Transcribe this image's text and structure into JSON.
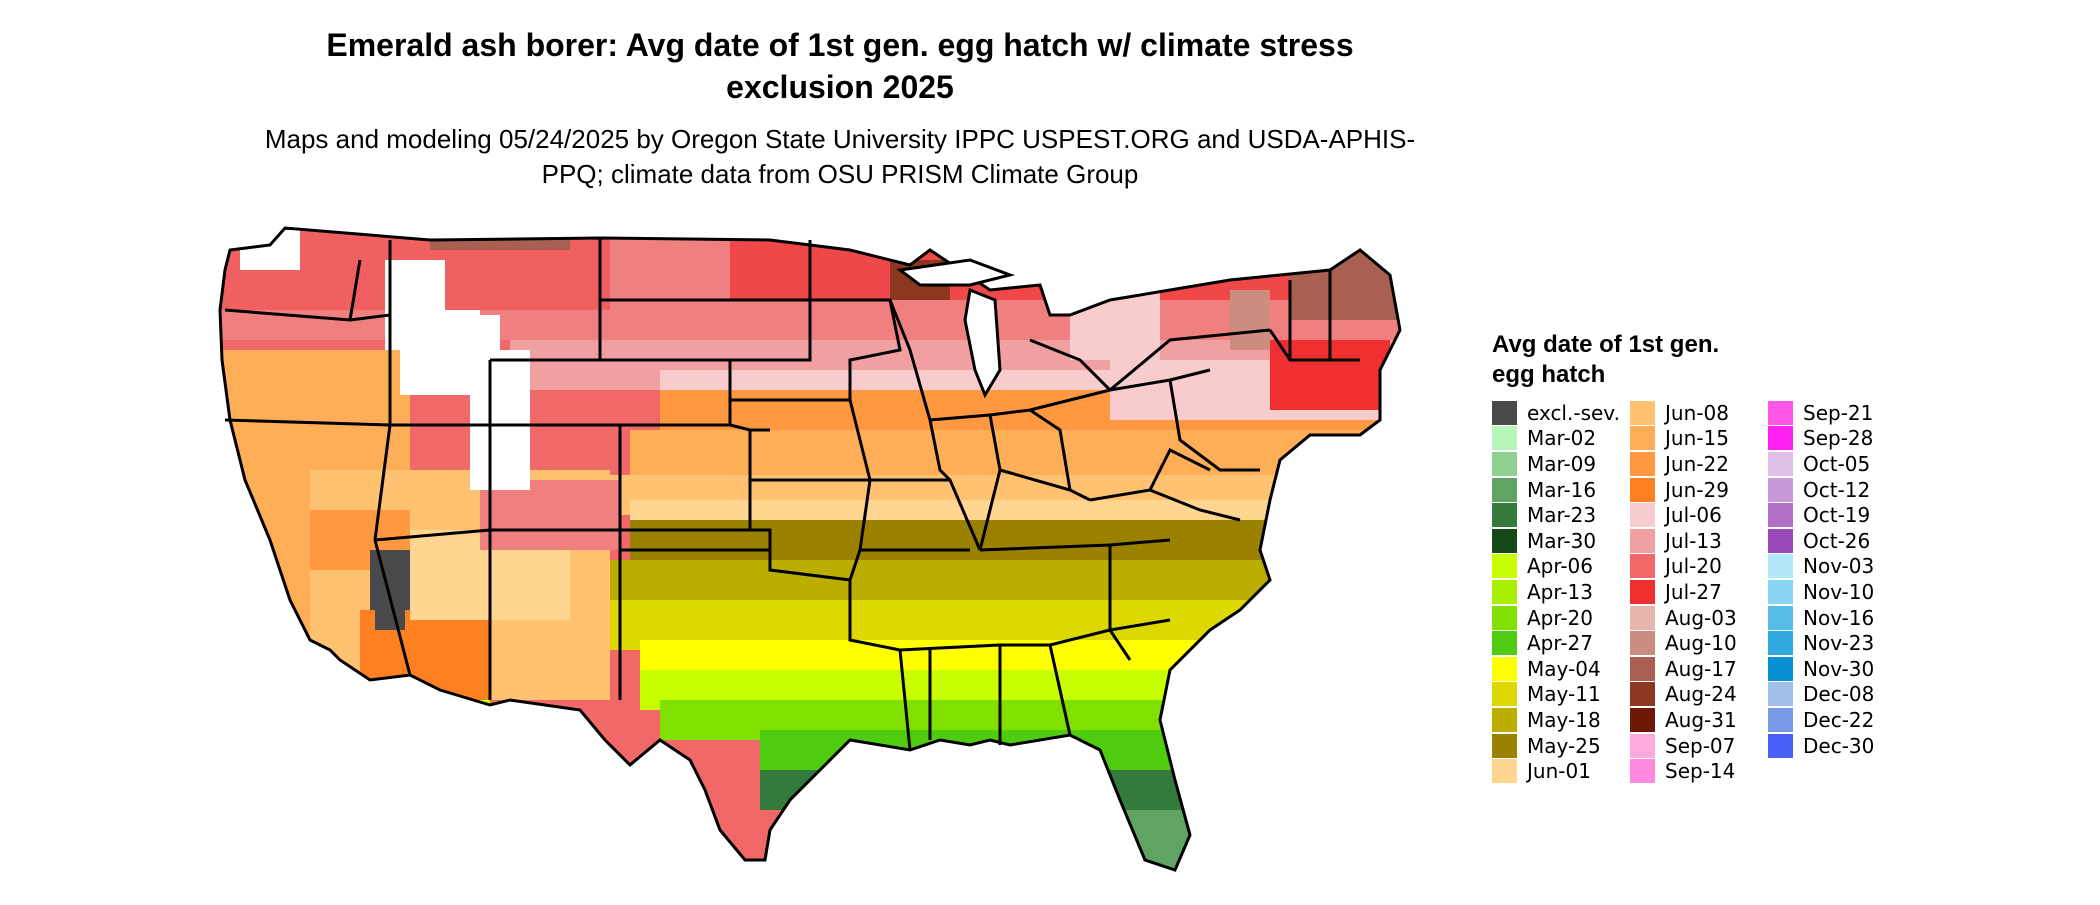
{
  "title": "Emerald ash borer: Avg date of 1st gen. egg hatch w/ climate stress exclusion 2025",
  "subtitle": "Maps and modeling 05/24/2025 by Oregon State University IPPC USPEST.ORG and USDA-APHIS-PPQ; climate data from OSU PRISM Climate Group",
  "legend": {
    "title": "Avg date of 1st gen. egg hatch",
    "items": [
      {
        "label": "excl.-sev.",
        "color": "#4a4a4d"
      },
      {
        "label": "Mar-02",
        "color": "#b8f5b8"
      },
      {
        "label": "Mar-09",
        "color": "#90d090"
      },
      {
        "label": "Mar-16",
        "color": "#5fa463"
      },
      {
        "label": "Mar-23",
        "color": "#347a3a"
      },
      {
        "label": "Mar-30",
        "color": "#154a18"
      },
      {
        "label": "Apr-06",
        "color": "#c8ff00"
      },
      {
        "label": "Apr-13",
        "color": "#a8f000"
      },
      {
        "label": "Apr-20",
        "color": "#80e000"
      },
      {
        "label": "Apr-27",
        "color": "#50cc10"
      },
      {
        "label": "May-04",
        "color": "#ffff00"
      },
      {
        "label": "May-11",
        "color": "#dcd800"
      },
      {
        "label": "May-18",
        "color": "#bcae00"
      },
      {
        "label": "May-25",
        "color": "#9a8200"
      },
      {
        "label": "Jun-01",
        "color": "#ffd690"
      },
      {
        "label": "Jun-08",
        "color": "#ffc270"
      },
      {
        "label": "Jun-15",
        "color": "#ffae58"
      },
      {
        "label": "Jun-22",
        "color": "#ff9840"
      },
      {
        "label": "Jun-29",
        "color": "#ff8020"
      },
      {
        "label": "Jul-06",
        "color": "#f8cccc"
      },
      {
        "label": "Jul-13",
        "color": "#f0a0a0"
      },
      {
        "label": "Jul-20",
        "color": "#f06868"
      },
      {
        "label": "Jul-27",
        "color": "#f03030"
      },
      {
        "label": "Aug-03",
        "color": "#e6b6aa"
      },
      {
        "label": "Aug-10",
        "color": "#cc8c80"
      },
      {
        "label": "Aug-17",
        "color": "#aa6050"
      },
      {
        "label": "Aug-24",
        "color": "#8c3820"
      },
      {
        "label": "Aug-31",
        "color": "#6e1808"
      },
      {
        "label": "Sep-07",
        "color": "#ffaadc"
      },
      {
        "label": "Sep-14",
        "color": "#ff88e0"
      },
      {
        "label": "Sep-21",
        "color": "#ff55e8"
      },
      {
        "label": "Sep-28",
        "color": "#ff22f0"
      },
      {
        "label": "Oct-05",
        "color": "#e0c0e8"
      },
      {
        "label": "Oct-12",
        "color": "#c898d8"
      },
      {
        "label": "Oct-19",
        "color": "#b070c8"
      },
      {
        "label": "Oct-26",
        "color": "#9848b8"
      },
      {
        "label": "Nov-03",
        "color": "#b0e8f8"
      },
      {
        "label": "Nov-10",
        "color": "#88d4f4"
      },
      {
        "label": "Nov-16",
        "color": "#58bce8"
      },
      {
        "label": "Nov-23",
        "color": "#30a8e0"
      },
      {
        "label": "Nov-30",
        "color": "#0890d4"
      },
      {
        "label": "Dec-08",
        "color": "#a0c0e8"
      },
      {
        "label": "Dec-22",
        "color": "#7898e8"
      },
      {
        "label": "Dec-30",
        "color": "#4860f8"
      }
    ]
  }
}
